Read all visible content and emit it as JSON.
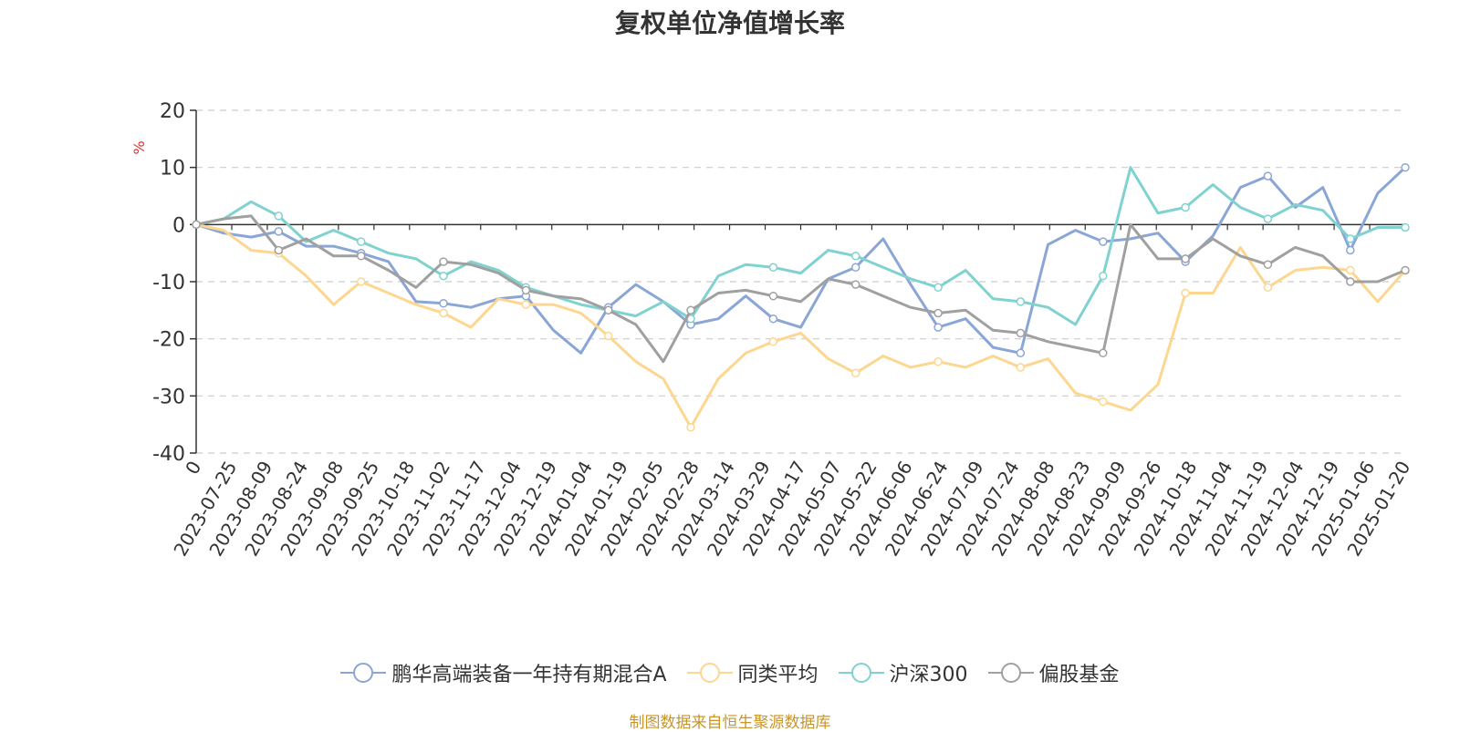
{
  "page": {
    "title": "复权单位净值增长率",
    "source": "制图数据来自恒生聚源数据库"
  },
  "chart_data": {
    "type": "line",
    "title": "复权单位净值增长率",
    "ylabel": "%",
    "ylim": [
      -40,
      20
    ],
    "yticks": [
      20,
      10,
      0,
      -10,
      -20,
      -30,
      -40
    ],
    "grid": true,
    "legend_position": "bottom",
    "xticks": [
      "0",
      "2023-07-25",
      "2023-08-09",
      "2023-08-24",
      "2023-09-08",
      "2023-09-25",
      "2023-10-18",
      "2023-11-02",
      "2023-11-17",
      "2023-12-04",
      "2023-12-19",
      "2024-01-04",
      "2024-01-19",
      "2024-02-05",
      "2024-02-28",
      "2024-03-14",
      "2024-03-29",
      "2024-04-17",
      "2024-05-07",
      "2024-05-22",
      "2024-06-06",
      "2024-06-24",
      "2024-07-09",
      "2024-07-24",
      "2024-08-08",
      "2024-08-23",
      "2024-09-09",
      "2024-09-26",
      "2024-10-18",
      "2024-11-04",
      "2024-11-19",
      "2024-12-04",
      "2024-12-19",
      "2025-01-06",
      "2025-01-20"
    ],
    "series": [
      {
        "name": "鹏华高端装备一年持有期混合A",
        "color": "#8aa6d6",
        "values": [
          0,
          -1.5,
          -2.2,
          -1.2,
          -3.8,
          -3.8,
          -5,
          -6.5,
          -13.5,
          -13.8,
          -14.5,
          -13,
          -12.5,
          -18.5,
          -22.5,
          -14.5,
          -10.5,
          -13.5,
          -17.5,
          -16.5,
          -12.5,
          -16.5,
          -18,
          -9.5,
          -7.5,
          -2.5,
          -10.5,
          -18,
          -16.5,
          -21.5,
          -22.5,
          -3.5,
          -1,
          -3,
          -2.5,
          -1.5,
          -6.5,
          -2,
          6.5,
          8.5,
          3,
          6.5,
          -4.5,
          5.5,
          10
        ]
      },
      {
        "name": "同类平均",
        "color": "#fdd68f",
        "values": [
          0,
          -1,
          -4.5,
          -5,
          -9,
          -14,
          -10,
          -12,
          -14,
          -15.5,
          -18,
          -13,
          -14,
          -14,
          -15.5,
          -19.5,
          -24,
          -27,
          -35.5,
          -27,
          -22.5,
          -20.5,
          -19,
          -23.5,
          -26,
          -23,
          -25,
          -24,
          -25,
          -23,
          -25,
          -23.5,
          -29.5,
          -31,
          -32.5,
          -28,
          -12,
          -12,
          -4,
          -11,
          -8,
          -7.5,
          -8,
          -13.5,
          -8
        ]
      },
      {
        "name": "沪深300",
        "color": "#7fd2d0",
        "values": [
          0,
          1,
          4,
          1.5,
          -3,
          -1,
          -3,
          -5,
          -6,
          -9,
          -6.5,
          -8,
          -11,
          -12.5,
          -14,
          -15,
          -16,
          -13.5,
          -16.5,
          -9,
          -7,
          -7.5,
          -8.5,
          -4.5,
          -5.5,
          -7.5,
          -9.5,
          -11,
          -8,
          -13,
          -13.5,
          -14.5,
          -17.5,
          -9,
          10,
          2,
          3,
          7,
          3,
          1,
          3.5,
          2.5,
          -2.5,
          -0.5,
          -0.5
        ]
      },
      {
        "name": "偏股基金",
        "color": "#a0a0a0",
        "values": [
          0,
          1,
          1.5,
          -4.5,
          -2.5,
          -5.5,
          -5.5,
          -8,
          -11,
          -6.5,
          -7,
          -8.5,
          -11.5,
          -12.5,
          -13,
          -15,
          -17.5,
          -24,
          -15,
          -12,
          -11.5,
          -12.5,
          -13.5,
          -9.5,
          -10.5,
          -12.5,
          -14.5,
          -15.5,
          -15,
          -18.5,
          -19,
          -20.5,
          -21.5,
          -22.5,
          0,
          -6,
          -6,
          -2.5,
          -5.5,
          -7,
          -4,
          -5.5,
          -10,
          -10,
          -8
        ]
      }
    ]
  }
}
